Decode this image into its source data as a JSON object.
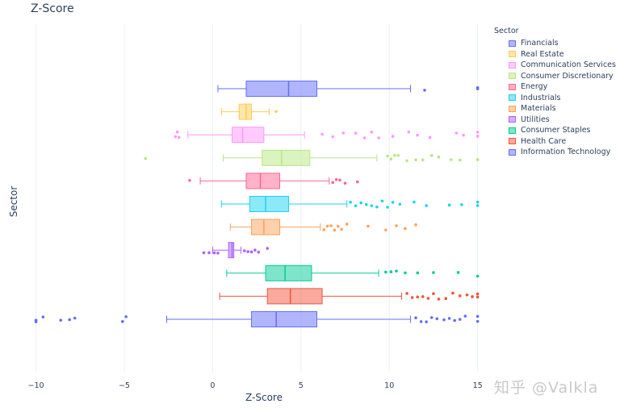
{
  "chart_data": {
    "type": "box",
    "title": "Z-Score",
    "xlabel": "Z-Score",
    "ylabel": "Sector",
    "xlim": [
      -10.3,
      15.2
    ],
    "xticks": [
      -10,
      -5,
      0,
      5,
      10,
      15
    ],
    "xtick_labels": [
      "−10",
      "−5",
      "0",
      "5",
      "10",
      "15"
    ],
    "legend_title": "Sector",
    "series": [
      {
        "name": "Financials",
        "color": "#636efa",
        "whisker_low": 0.3,
        "q1": 1.9,
        "median": 4.3,
        "q3": 5.9,
        "whisker_high": 11.2,
        "outliers": [
          12.0,
          15.0,
          15.0
        ]
      },
      {
        "name": "Real Estate",
        "color": "#fecb52",
        "whisker_low": 0.5,
        "q1": 1.5,
        "median": 1.9,
        "q3": 2.2,
        "whisker_high": 3.2,
        "outliers": [
          3.6
        ]
      },
      {
        "name": "Communication Services",
        "color": "#ff97ff",
        "whisker_low": -1.4,
        "q1": 1.1,
        "median": 1.7,
        "q3": 2.9,
        "whisker_high": 5.2,
        "outliers": [
          -2.1,
          -1.9,
          -2.0,
          6.2,
          6.8,
          7.4,
          8.1,
          8.6,
          9.0,
          9.4,
          10.2,
          11.1,
          11.6,
          12.3,
          13.8,
          14.2,
          15.0,
          15.0
        ]
      },
      {
        "name": "Consumer Discretionary",
        "color": "#b6e880",
        "whisker_low": 0.6,
        "q1": 2.8,
        "median": 3.9,
        "q3": 5.5,
        "whisker_high": 9.3,
        "outliers": [
          -3.8,
          9.9,
          10.1,
          10.3,
          10.5,
          11.0,
          11.5,
          11.9,
          12.4,
          12.8,
          13.5,
          14.0,
          15.0,
          15.0
        ]
      },
      {
        "name": "Energy",
        "color": "#ff6692",
        "whisker_low": -0.7,
        "q1": 1.9,
        "median": 2.7,
        "q3": 3.8,
        "whisker_high": 6.6,
        "outliers": [
          -1.3,
          6.8,
          7.0,
          7.2,
          7.5,
          8.2
        ]
      },
      {
        "name": "Industrials",
        "color": "#19d3f3",
        "whisker_low": 0.5,
        "q1": 2.1,
        "median": 3.0,
        "q3": 4.3,
        "whisker_high": 7.6,
        "outliers": [
          7.8,
          8.1,
          8.4,
          8.7,
          9.0,
          9.3,
          9.6,
          9.9,
          10.2,
          10.6,
          11.4,
          12.1,
          13.4,
          14.1,
          15.0,
          15.0
        ]
      },
      {
        "name": "Materials",
        "color": "#ffa15a",
        "whisker_low": 1.0,
        "q1": 2.2,
        "median": 2.9,
        "q3": 3.8,
        "whisker_high": 6.1,
        "outliers": [
          6.3,
          6.5,
          6.7,
          6.9,
          7.1,
          7.3,
          7.6,
          8.8,
          9.8,
          10.4,
          10.9,
          11.5
        ]
      },
      {
        "name": "Utilities",
        "color": "#ab63fa",
        "whisker_low": 0.0,
        "q1": 0.9,
        "median": 1.1,
        "q3": 1.2,
        "whisker_high": 1.6,
        "outliers": [
          -0.5,
          -0.2,
          0.1,
          0.3,
          1.8,
          2.0,
          2.2,
          2.4,
          2.6,
          3.1
        ]
      },
      {
        "name": "Consumer Staples",
        "color": "#00cc96",
        "whisker_low": 0.8,
        "q1": 3.0,
        "median": 4.1,
        "q3": 5.6,
        "whisker_high": 9.4,
        "outliers": [
          9.8,
          10.1,
          10.4,
          10.9,
          11.6,
          12.5,
          13.9,
          15.0
        ]
      },
      {
        "name": "Health Care",
        "color": "#ef553b",
        "whisker_low": 0.4,
        "q1": 3.1,
        "median": 4.4,
        "q3": 6.2,
        "whisker_high": 10.7,
        "outliers": [
          11.0,
          11.3,
          11.6,
          11.9,
          12.2,
          12.5,
          12.8,
          13.2,
          13.6,
          14.0,
          14.4,
          14.7,
          15.0,
          15.0
        ]
      },
      {
        "name": "Information Technology",
        "color": "#636efa",
        "whisker_low": -2.6,
        "q1": 2.2,
        "median": 3.6,
        "q3": 5.9,
        "whisker_high": 11.2,
        "outliers": [
          -10.0,
          -10.0,
          -9.6,
          -8.6,
          -8.1,
          -7.8,
          -5.1,
          -4.9,
          11.5,
          11.8,
          12.1,
          12.4,
          12.7,
          13.1,
          13.4,
          13.7,
          14.0,
          14.3,
          15.0,
          15.0
        ]
      }
    ]
  },
  "watermark": "知乎 @Valkla"
}
